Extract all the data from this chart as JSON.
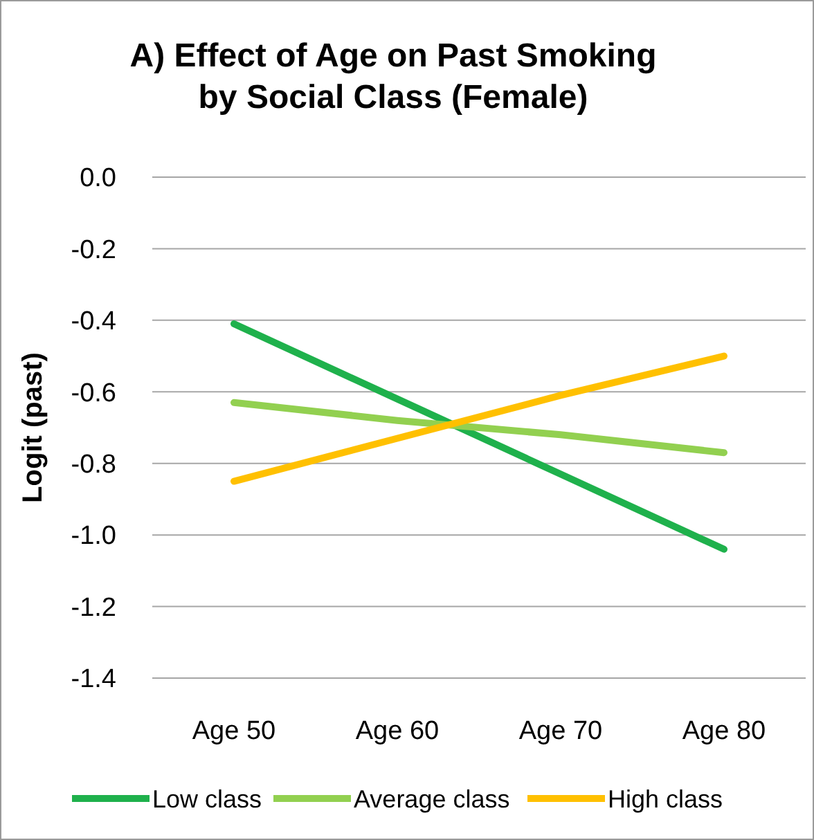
{
  "chart_data": {
    "type": "line",
    "title": "A) Effect of Age on Past Smoking by Social Class (Female)",
    "ylabel": "Logit (past)",
    "categories": [
      "Age 50",
      "Age 60",
      "Age 70",
      "Age 80"
    ],
    "series": [
      {
        "name": "Low class",
        "color": "#1fb14c",
        "values": [
          -0.41,
          -0.62,
          -0.83,
          -1.04
        ]
      },
      {
        "name": "Average class",
        "color": "#92d050",
        "values": [
          -0.63,
          -0.68,
          -0.72,
          -0.77
        ]
      },
      {
        "name": "High class",
        "color": "#ffc000",
        "values": [
          -0.85,
          -0.73,
          -0.61,
          -0.5
        ]
      }
    ],
    "ylim": [
      -1.4,
      0
    ],
    "yticks": [
      {
        "value": 0,
        "label": "0.0"
      },
      -0.2,
      -0.4,
      -0.6,
      -0.8,
      {
        "value": -1,
        "label": "-1.0"
      },
      -1.2,
      -1.4
    ],
    "grid": "y",
    "legend": "bottom"
  }
}
